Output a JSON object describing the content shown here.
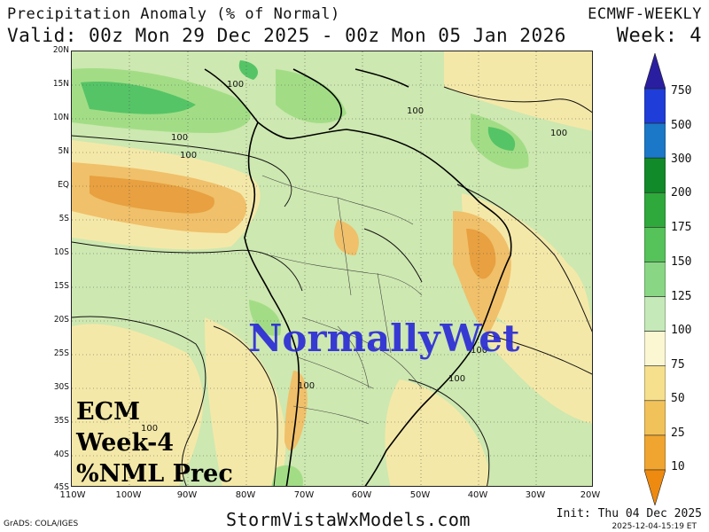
{
  "header": {
    "title": "Precipitation Anomaly (% of Normal)",
    "valid": "Valid: 00z Mon 29 Dec 2025 - 00z Mon 05 Jan 2026",
    "model": "ECMWF-WEEKLY",
    "week": "Week: 4"
  },
  "map": {
    "lat_labels": [
      "20N",
      "15N",
      "10N",
      "5N",
      "EQ",
      "5S",
      "10S",
      "15S",
      "20S",
      "25S",
      "30S",
      "35S",
      "40S",
      "45S"
    ],
    "lon_labels": [
      "110W",
      "100W",
      "90W",
      "80W",
      "70W",
      "60W",
      "50W",
      "40W",
      "30W",
      "20W"
    ],
    "contour_labels": [
      "100",
      "100",
      "100",
      "100",
      "100",
      "100",
      "100",
      "100",
      "100"
    ],
    "watermark": "NormallyWet",
    "stamp_lines": [
      "ECM",
      "Week-4",
      "%NML Prec"
    ],
    "colors": {
      "normal": "#cde8b0",
      "wet": "#a2dd86",
      "very_wet": "#55c466",
      "dry": "#f4e8a8",
      "very_dry": "#f0c06a",
      "extreme_dry": "#e8a040"
    }
  },
  "colorbar": {
    "labels": [
      "750",
      "500",
      "300",
      "200",
      "175",
      "150",
      "125",
      "100",
      "75",
      "50",
      "25",
      "10"
    ],
    "colors": [
      "#2a1ea0",
      "#1f3dd8",
      "#1b78c8",
      "#118a2a",
      "#2fa83c",
      "#56c25a",
      "#89d685",
      "#c5e9b8",
      "#fbf7d2",
      "#f6e08e",
      "#f2c25a",
      "#f0a530",
      "#ee8a10"
    ]
  },
  "footer": {
    "site": "StormVistaWxModels.com",
    "grads": "GrADS: COLA/IGES",
    "init": "Init: Thu 04 Dec 2025",
    "stamp": "2025-12-04-15:19 ET"
  }
}
